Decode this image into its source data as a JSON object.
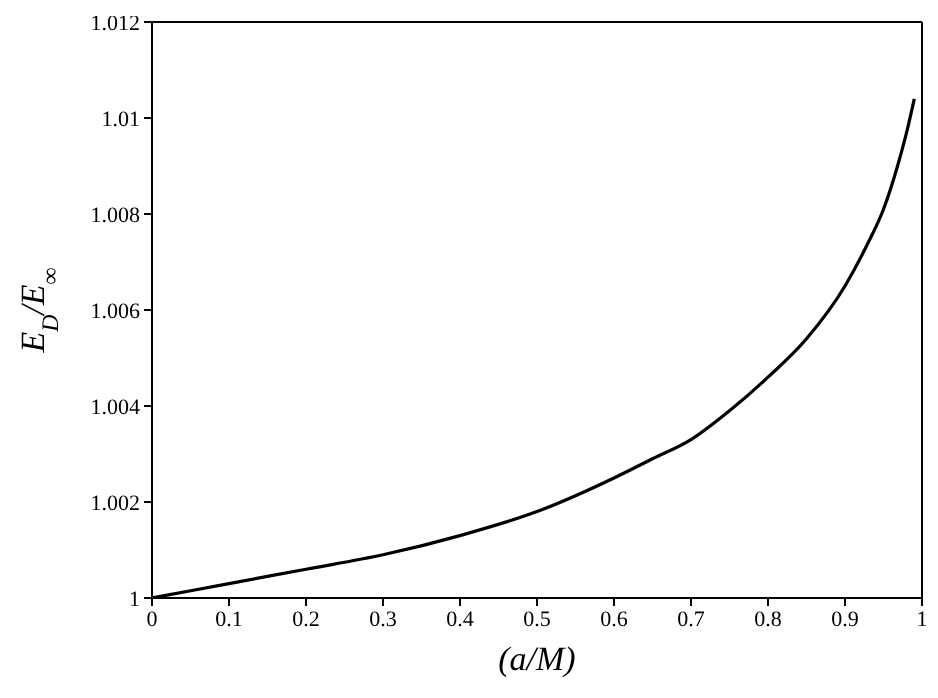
{
  "chart_data": {
    "type": "line",
    "xlabel": "(a/M)",
    "ylabel": "E$_{D}$/E$_{∞}$",
    "x": [
      0,
      0.1,
      0.2,
      0.3,
      0.4,
      0.5,
      0.6,
      0.65,
      0.7,
      0.75,
      0.8,
      0.85,
      0.9,
      0.93,
      0.95,
      0.97,
      0.98,
      0.99
    ],
    "series": [
      {
        "color": "#000000",
        "values": [
          1.0,
          1.0003,
          1.0006,
          1.0009,
          1.0013,
          1.0018,
          1.0025,
          1.0029,
          1.0033,
          1.0039,
          1.0046,
          1.0054,
          1.0065,
          1.0074,
          1.0081,
          1.0091,
          1.0097,
          1.0104
        ]
      }
    ],
    "xlim": [
      0,
      1
    ],
    "xticks": [
      0,
      0.1,
      0.2,
      0.3,
      0.4,
      0.5,
      0.6,
      0.7,
      0.8,
      0.9,
      1
    ],
    "ylim": [
      1,
      1.012
    ],
    "yticks": [
      1,
      1.002,
      1.004,
      1.006,
      1.008,
      1.01,
      1.012
    ],
    "grid": false,
    "legend": false,
    "marker": "none",
    "line_style": "solid"
  }
}
